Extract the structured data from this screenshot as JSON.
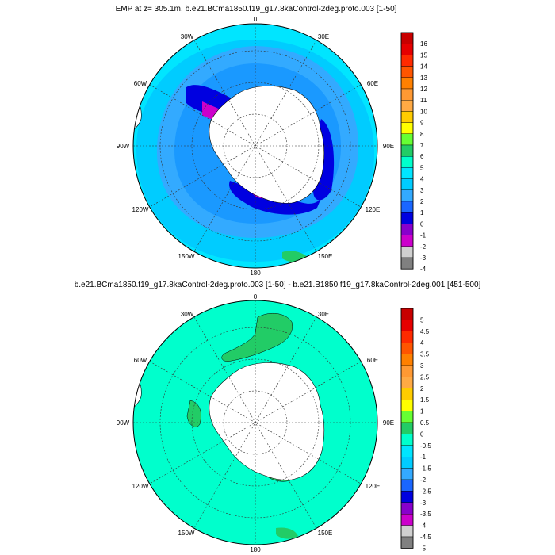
{
  "top_panel": {
    "title": "TEMP at z= 305.1m, b.e21.BCma1850.f19_g17.8kaControl-2deg.proto.003 [1-50]",
    "longitude_labels": [
      "0",
      "30E",
      "60E",
      "90E",
      "120E",
      "150E",
      "180",
      "150W",
      "120W",
      "90W",
      "60W",
      "30W"
    ],
    "colorbar": {
      "labels": [
        "16",
        "15",
        "14",
        "13",
        "12",
        "11",
        "10",
        "9",
        "8",
        "7",
        "6",
        "5",
        "4",
        "3",
        "2",
        "1",
        "0",
        "-1",
        "-2",
        "-3",
        "-4"
      ],
      "colors": [
        "#c80000",
        "#e60000",
        "#ff2a00",
        "#ff5500",
        "#ff8000",
        "#ff9933",
        "#ffaa44",
        "#ffcc00",
        "#ffff00",
        "#66ff33",
        "#22cc66",
        "#00ffcc",
        "#00e5ff",
        "#00ccff",
        "#33aaff",
        "#1a66ff",
        "#0000e0",
        "#8800cc",
        "#cc00cc",
        "#d0d0d0",
        "#808080"
      ]
    }
  },
  "bottom_panel": {
    "title": "b.e21.BCma1850.f19_g17.8kaControl-2deg.proto.003 [1-50] - b.e21.B1850.f19_g17.8kaControl-2deg.001 [451-500]",
    "longitude_labels": [
      "0",
      "30E",
      "60E",
      "90E",
      "120E",
      "150E",
      "180",
      "150W",
      "120W",
      "90W",
      "60W",
      "30W"
    ],
    "colorbar": {
      "labels": [
        "5",
        "4.5",
        "4",
        "3.5",
        "3",
        "2.5",
        "2",
        "1.5",
        "1",
        "0.5",
        "0",
        "-0.5",
        "-1",
        "-1.5",
        "-2",
        "-2.5",
        "-3",
        "-3.5",
        "-4",
        "-4.5",
        "-5"
      ],
      "colors": [
        "#c80000",
        "#e60000",
        "#ff2a00",
        "#ff5500",
        "#ff8000",
        "#ff9933",
        "#ffaa44",
        "#ffcc00",
        "#ffff00",
        "#66ff33",
        "#22cc66",
        "#00ffcc",
        "#00e5ff",
        "#00ccff",
        "#33aaff",
        "#1a66ff",
        "#0000e0",
        "#8800cc",
        "#cc00cc",
        "#d0d0d0",
        "#808080"
      ]
    }
  }
}
